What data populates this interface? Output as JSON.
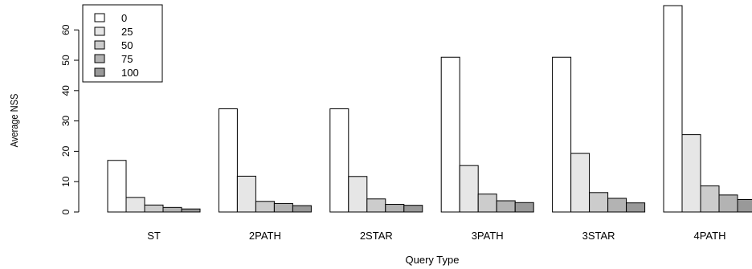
{
  "chart_data": {
    "type": "bar",
    "xlabel": "Query Type",
    "ylabel": "Average NSS",
    "ylim": [
      0,
      68
    ],
    "yticks": [
      0,
      10,
      20,
      30,
      40,
      50,
      60
    ],
    "grid": false,
    "legend_position": "top-left",
    "categories": [
      "ST",
      "2PATH",
      "2STAR",
      "3PATH",
      "3STAR",
      "4PATH"
    ],
    "series": [
      {
        "name": "0",
        "color": "#ffffff",
        "values": [
          17,
          34,
          34,
          51,
          51,
          68
        ]
      },
      {
        "name": "25",
        "color": "#e6e6e6",
        "values": [
          4.8,
          11.8,
          11.7,
          15.3,
          19.3,
          25.5
        ]
      },
      {
        "name": "50",
        "color": "#cccccc",
        "values": [
          2.3,
          3.5,
          4.3,
          5.9,
          6.4,
          8.6
        ]
      },
      {
        "name": "75",
        "color": "#b3b3b3",
        "values": [
          1.5,
          2.8,
          2.5,
          3.7,
          4.5,
          5.6
        ]
      },
      {
        "name": "100",
        "color": "#999999",
        "values": [
          1.0,
          2.1,
          2.2,
          3.1,
          3.0,
          4.1
        ]
      }
    ]
  }
}
